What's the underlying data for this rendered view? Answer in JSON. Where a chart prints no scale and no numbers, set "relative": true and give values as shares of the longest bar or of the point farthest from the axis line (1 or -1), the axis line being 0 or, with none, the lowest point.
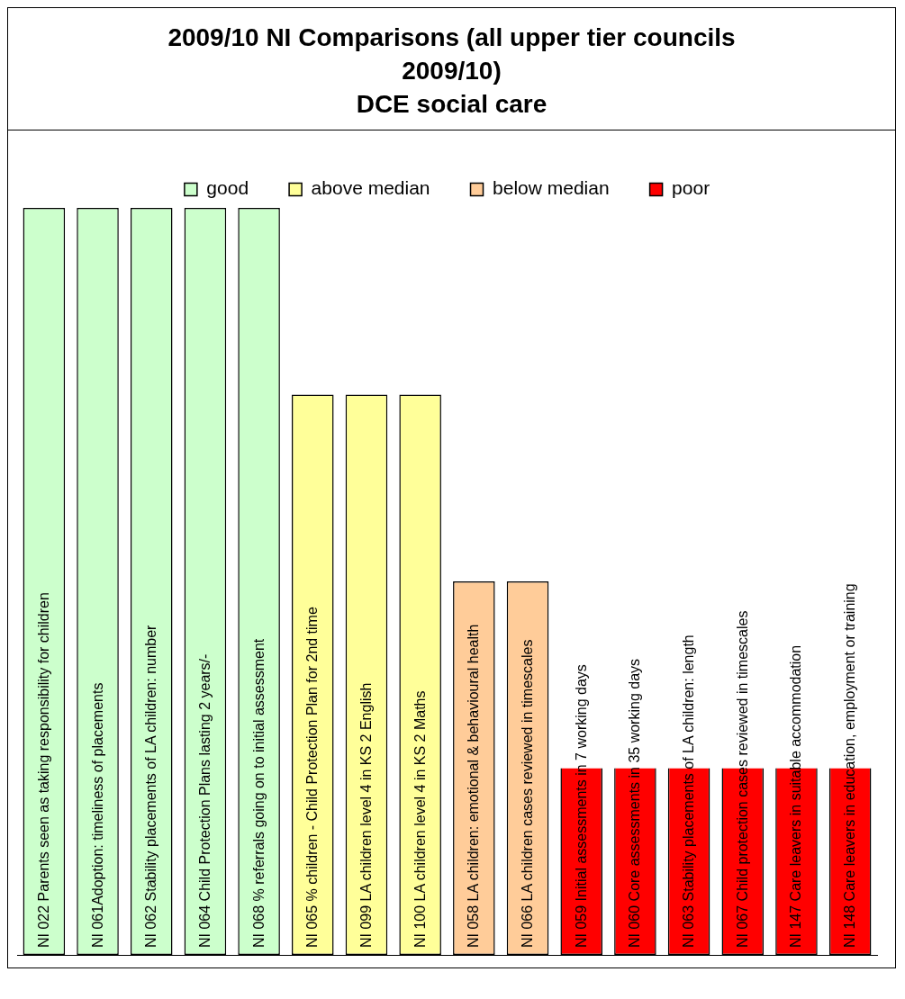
{
  "chart_data": {
    "type": "bar",
    "title": "2009/10 NI Comparisons (all upper tier councils 2009/10)",
    "subtitle": "DCE social care",
    "relative": true,
    "legend": "top",
    "grid": false,
    "categories": [
      "NI 022 Parents seen as taking responsibility for children",
      "NI 061Adoption: timeliness of placements",
      "NI 062 Stability placements of LA children: number",
      "NI 064 Child Protection Plans lasting 2 years/-",
      "NI 068 % referrals going on to initial assessment",
      "NI 065 % children - Child Protection Plan for 2nd time",
      "NI 099 LA children level 4 in KS 2 English",
      "NI 100 LA children level 4 in KS 2 Maths",
      "NI 058 LA children: emotional & behavioural health",
      "NI 066 LA children cases reviewed in timescales",
      "NI 059 Initial assessments in 7 working days",
      "NI 060 Core assessments in 35 working days",
      "NI 063 Stability placements of LA children: length",
      "NI 067 Child protection cases reviewed in timescales",
      "NI 147 Care leavers in suitable accommodation",
      "NI 148 Care leavers in education, employment or training"
    ],
    "series": [
      {
        "name": "good",
        "color": "#ccffcc",
        "values": [
          1,
          1,
          1,
          1,
          1,
          null,
          null,
          null,
          null,
          null,
          null,
          null,
          null,
          null,
          null,
          null
        ]
      },
      {
        "name": "above median",
        "color": "#ffff99",
        "values": [
          null,
          null,
          null,
          null,
          null,
          0.75,
          0.75,
          0.75,
          null,
          null,
          null,
          null,
          null,
          null,
          null,
          null
        ]
      },
      {
        "name": "below median",
        "color": "#ffcc99",
        "values": [
          null,
          null,
          null,
          null,
          null,
          null,
          null,
          null,
          0.5,
          0.5,
          null,
          null,
          null,
          null,
          null,
          null
        ]
      },
      {
        "name": "poor",
        "color": "#ff0000",
        "values": [
          null,
          null,
          null,
          null,
          null,
          null,
          null,
          null,
          null,
          null,
          0.25,
          0.25,
          0.25,
          0.25,
          0.25,
          0.25
        ]
      }
    ]
  }
}
